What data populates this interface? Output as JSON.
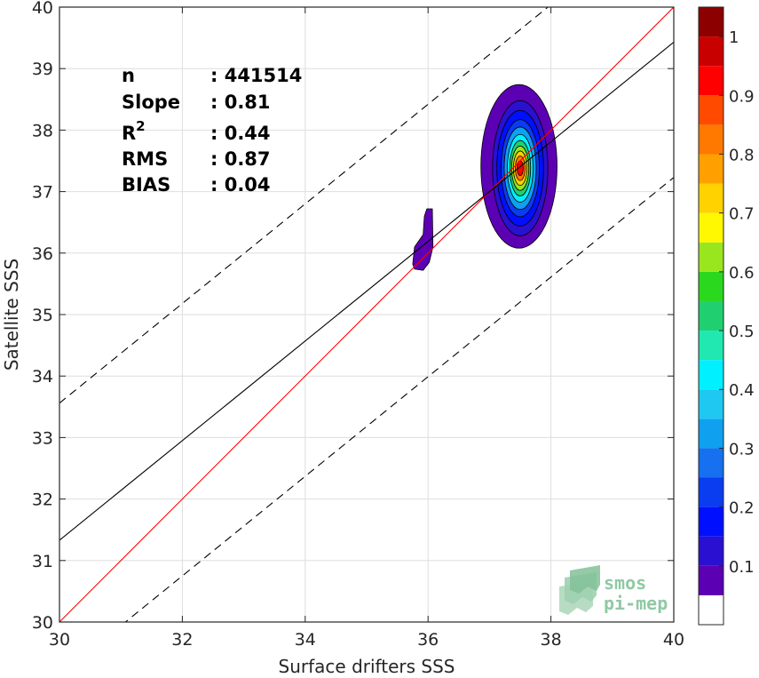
{
  "chart_data": {
    "type": "density_scatter",
    "xlabel": "Surface drifters SSS",
    "ylabel": "Satellite SSS",
    "xlim": [
      30,
      40
    ],
    "ylim": [
      30,
      40
    ],
    "x_ticks": [
      30,
      32,
      34,
      36,
      38,
      40
    ],
    "y_ticks": [
      30,
      31,
      32,
      33,
      34,
      35,
      36,
      37,
      38,
      39,
      40
    ],
    "grid": true,
    "stats": [
      {
        "label": "n",
        "sep": ": ",
        "value": "441514"
      },
      {
        "label": "Slope",
        "sep": ": ",
        "value": "0.81"
      },
      {
        "label": "R",
        "sup": "2",
        "sep": ": ",
        "value": "0.44"
      },
      {
        "label": "RMS",
        "sep": ": ",
        "value": "0.87"
      },
      {
        "label": "BIAS",
        "sep": ": ",
        "value": "0.04"
      }
    ],
    "lines": [
      {
        "role": "one-to-one",
        "color": "#ff0000",
        "dash": false,
        "points": [
          [
            30,
            30
          ],
          [
            40,
            40
          ]
        ]
      },
      {
        "role": "regression",
        "color": "#000000",
        "dash": false,
        "slope": 0.81,
        "intercept": 7.03
      },
      {
        "role": "upper-bound",
        "color": "#000000",
        "dash": true,
        "slope": 0.81,
        "intercept": 9.26
      },
      {
        "role": "lower-bound",
        "color": "#000000",
        "dash": true,
        "slope": 0.81,
        "intercept": 4.83
      }
    ],
    "density": {
      "main_cluster": {
        "center": [
          37.5,
          37.38
        ],
        "levels": [
          {
            "level": 0.05,
            "rx": 0.62,
            "ry": 1.33,
            "dx": -0.02,
            "dy": 0.03
          },
          {
            "level": 0.1,
            "rx": 0.45,
            "ry": 1.1,
            "dx": 0.0,
            "dy": 0.0
          },
          {
            "level": 0.15,
            "rx": 0.38,
            "ry": 0.94,
            "dx": 0.0,
            "dy": 0.0
          },
          {
            "level": 0.2,
            "rx": 0.31,
            "ry": 0.79,
            "dx": 0.0,
            "dy": 0.0
          },
          {
            "level": 0.3,
            "rx": 0.26,
            "ry": 0.67,
            "dx": 0.0,
            "dy": 0.0
          },
          {
            "level": 0.4,
            "rx": 0.21,
            "ry": 0.55,
            "dx": 0.0,
            "dy": 0.0
          },
          {
            "level": 0.5,
            "rx": 0.17,
            "ry": 0.45,
            "dx": 0.0,
            "dy": 0.0
          },
          {
            "level": 0.6,
            "rx": 0.14,
            "ry": 0.36,
            "dx": 0.0,
            "dy": 0.0
          },
          {
            "level": 0.7,
            "rx": 0.11,
            "ry": 0.28,
            "dx": 0.0,
            "dy": 0.0
          },
          {
            "level": 0.8,
            "rx": 0.08,
            "ry": 0.2,
            "dx": 0.0,
            "dy": 0.0
          },
          {
            "level": 0.9,
            "rx": 0.05,
            "ry": 0.12,
            "dx": 0.0,
            "dy": 0.0
          }
        ]
      },
      "small_cluster": {
        "level": 0.05,
        "points": [
          [
            35.75,
            35.82
          ],
          [
            35.78,
            36.1
          ],
          [
            35.92,
            36.3
          ],
          [
            35.94,
            36.6
          ],
          [
            35.98,
            36.72
          ],
          [
            36.07,
            36.72
          ],
          [
            36.08,
            36.1
          ],
          [
            36.02,
            35.85
          ],
          [
            35.92,
            35.72
          ],
          [
            35.78,
            35.74
          ]
        ]
      }
    }
  },
  "colorbar": {
    "range": [
      0,
      1
    ],
    "ticks": [
      {
        "value": 0.1,
        "label": "0.1"
      },
      {
        "value": 0.2,
        "label": "0.2"
      },
      {
        "value": 0.3,
        "label": "0.3"
      },
      {
        "value": 0.4,
        "label": "0.4"
      },
      {
        "value": 0.5,
        "label": "0.5"
      },
      {
        "value": 0.6,
        "label": "0.6"
      },
      {
        "value": 0.7,
        "label": "0.7"
      },
      {
        "value": 0.8,
        "label": "0.8"
      },
      {
        "value": 0.9,
        "label": "0.9"
      },
      {
        "value": 1.0,
        "label": "1"
      }
    ],
    "bands": [
      {
        "from": 0.0,
        "to": 0.05,
        "color": "#ffffff"
      },
      {
        "from": 0.05,
        "to": 0.1,
        "color": "#5c00b4"
      },
      {
        "from": 0.1,
        "to": 0.15,
        "color": "#2a10d0"
      },
      {
        "from": 0.15,
        "to": 0.2,
        "color": "#0010ff"
      },
      {
        "from": 0.2,
        "to": 0.25,
        "color": "#0a3cf0"
      },
      {
        "from": 0.25,
        "to": 0.3,
        "color": "#1670f0"
      },
      {
        "from": 0.3,
        "to": 0.35,
        "color": "#0fa0f0"
      },
      {
        "from": 0.35,
        "to": 0.4,
        "color": "#1ec8f0"
      },
      {
        "from": 0.4,
        "to": 0.45,
        "color": "#00f0ff"
      },
      {
        "from": 0.45,
        "to": 0.5,
        "color": "#20e8b0"
      },
      {
        "from": 0.5,
        "to": 0.55,
        "color": "#20d070"
      },
      {
        "from": 0.55,
        "to": 0.6,
        "color": "#2ad81e"
      },
      {
        "from": 0.6,
        "to": 0.65,
        "color": "#9ae61e"
      },
      {
        "from": 0.65,
        "to": 0.7,
        "color": "#fff800"
      },
      {
        "from": 0.7,
        "to": 0.75,
        "color": "#ffd200"
      },
      {
        "from": 0.75,
        "to": 0.8,
        "color": "#ffa000"
      },
      {
        "from": 0.8,
        "to": 0.85,
        "color": "#ff7800"
      },
      {
        "from": 0.85,
        "to": 0.9,
        "color": "#ff4a00"
      },
      {
        "from": 0.9,
        "to": 0.95,
        "color": "#ff0000"
      },
      {
        "from": 0.95,
        "to": 1.0,
        "color": "#c80000"
      },
      {
        "from": 1.0,
        "to": 1.05,
        "color": "#8c0000"
      }
    ]
  },
  "logo": {
    "line1": "smos",
    "line2": "pi-mep"
  }
}
